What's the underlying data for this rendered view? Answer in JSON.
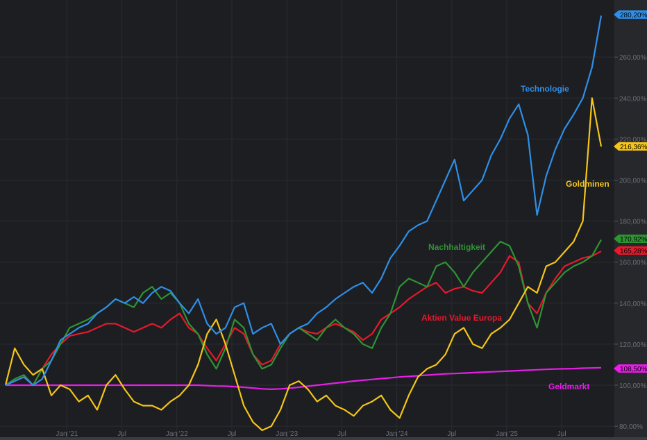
{
  "chart_data": {
    "type": "line",
    "title": "",
    "xlabel": "",
    "ylabel": "",
    "x_start": "Jun 2020",
    "x_step": "1 month",
    "ylim": [
      76,
      286
    ],
    "grid": true,
    "y_ticks": [
      80,
      100,
      120,
      140,
      160,
      180,
      200,
      220,
      240,
      260
    ],
    "y_tick_labels": [
      "80,00%",
      "100,00%",
      "120,00%",
      "140,00%",
      "160,00%",
      "180,00%",
      "200,00%",
      "220,00%",
      "240,00%",
      "260,00%"
    ],
    "x_ticks": [
      {
        "label": "Jan '21",
        "month_index": 7
      },
      {
        "label": "Jul",
        "month_index": 13
      },
      {
        "label": "Jan '22",
        "month_index": 19
      },
      {
        "label": "Jul",
        "month_index": 25
      },
      {
        "label": "Jan '23",
        "month_index": 31
      },
      {
        "label": "Jul",
        "month_index": 37
      },
      {
        "label": "Jan '24",
        "month_index": 43
      },
      {
        "label": "Jul",
        "month_index": 49
      },
      {
        "label": "Jan '25",
        "month_index": 55
      },
      {
        "label": "Jul",
        "month_index": 61
      }
    ],
    "series": [
      {
        "name": "Geldmarkt",
        "color": "#e61ee6",
        "last_label": "108,50%",
        "values": [
          100,
          100,
          100,
          100,
          100,
          100,
          100,
          100,
          100,
          100,
          100,
          100,
          100,
          100,
          100,
          100,
          100,
          100,
          100,
          100,
          100,
          100,
          99.8,
          99.6,
          99.5,
          99.3,
          99,
          98.6,
          98.2,
          98,
          98.2,
          98.5,
          99,
          99.5,
          100,
          100.5,
          101,
          101.5,
          102,
          102.4,
          102.8,
          103.2,
          103.6,
          104,
          104.3,
          104.6,
          104.9,
          105.2,
          105.5,
          105.7,
          105.9,
          106.1,
          106.3,
          106.5,
          106.7,
          106.9,
          107.1,
          107.3,
          107.5,
          107.7,
          107.9,
          108,
          108.1,
          108.3,
          108.4,
          108.5
        ]
      },
      {
        "name": "Aktien Value Europa",
        "color": "#e8192c",
        "last_label": "165,28%",
        "values": [
          100,
          102,
          104,
          100,
          108,
          115,
          120,
          124,
          125,
          126,
          128,
          130,
          130,
          128,
          126,
          128,
          130,
          128,
          132,
          135,
          128,
          125,
          118,
          112,
          120,
          128,
          125,
          115,
          110,
          112,
          120,
          125,
          128,
          126,
          125,
          128,
          130,
          128,
          126,
          122,
          125,
          132,
          135,
          138,
          142,
          145,
          148,
          150,
          145,
          147,
          148,
          146,
          145,
          150,
          155,
          163,
          160,
          140,
          135,
          145,
          152,
          158,
          160,
          162,
          163,
          165.28
        ]
      },
      {
        "name": "Nachhaltigkeit",
        "color": "#2e9432",
        "last_label": "170,92%",
        "values": [
          100,
          103,
          105,
          100,
          108,
          112,
          120,
          128,
          130,
          132,
          135,
          138,
          142,
          140,
          138,
          145,
          148,
          142,
          145,
          140,
          130,
          125,
          115,
          108,
          118,
          132,
          128,
          115,
          108,
          110,
          118,
          125,
          128,
          125,
          122,
          128,
          132,
          128,
          125,
          120,
          118,
          128,
          135,
          148,
          152,
          150,
          148,
          158,
          160,
          155,
          148,
          155,
          160,
          165,
          170,
          168,
          158,
          140,
          128,
          145,
          150,
          155,
          158,
          160,
          163,
          170.92
        ]
      },
      {
        "name": "Goldminen",
        "color": "#f5c518",
        "last_label": "216,36%",
        "values": [
          100,
          118,
          110,
          105,
          108,
          95,
          100,
          98,
          92,
          95,
          88,
          100,
          105,
          98,
          92,
          90,
          90,
          88,
          92,
          95,
          100,
          110,
          125,
          132,
          120,
          105,
          90,
          82,
          78,
          80,
          88,
          100,
          102,
          98,
          92,
          95,
          90,
          88,
          85,
          90,
          92,
          95,
          88,
          84,
          95,
          104,
          108,
          110,
          115,
          125,
          128,
          120,
          118,
          125,
          128,
          132,
          140,
          148,
          145,
          158,
          160,
          165,
          170,
          180,
          240,
          216.36
        ]
      },
      {
        "name": "Technologie",
        "color": "#2f8fe8",
        "last_label": "280,20%",
        "values": [
          100,
          102,
          104,
          100,
          103,
          112,
          122,
          125,
          128,
          130,
          135,
          138,
          142,
          140,
          143,
          140,
          145,
          148,
          146,
          140,
          135,
          142,
          130,
          125,
          128,
          138,
          140,
          125,
          128,
          130,
          120,
          125,
          128,
          130,
          135,
          138,
          142,
          145,
          148,
          150,
          145,
          152,
          162,
          168,
          175,
          178,
          180,
          190,
          200,
          210,
          190,
          195,
          200,
          212,
          220,
          230,
          237,
          222,
          183,
          202,
          215,
          225,
          232,
          240,
          255,
          280.2
        ]
      }
    ],
    "annotations": [
      {
        "text": "Technologie",
        "series": "Technologie"
      },
      {
        "text": "Goldminen",
        "series": "Goldminen"
      },
      {
        "text": "Nachhaltigkeit",
        "series": "Nachhaltigkeit"
      },
      {
        "text": "Aktien Value Europa",
        "series": "Aktien Value Europa"
      },
      {
        "text": "Geldmarkt",
        "series": "Geldmarkt"
      }
    ]
  }
}
